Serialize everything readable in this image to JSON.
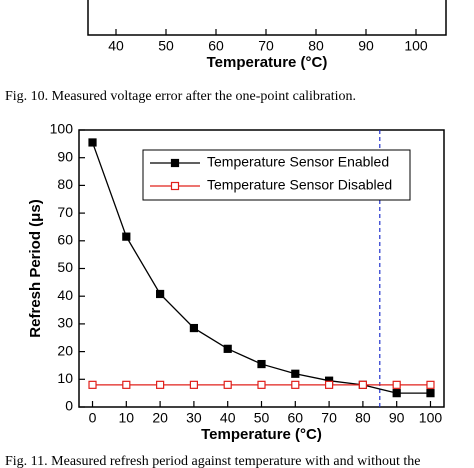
{
  "chart_data": [
    {
      "type": "line",
      "x_label": "Temperature (°C)",
      "xlim": [
        34.4,
        106
      ],
      "xticks": [
        40,
        50,
        60,
        70,
        80,
        90,
        100
      ],
      "caption": "Fig. 10.   Measured voltage error after the one-point calibration."
    },
    {
      "type": "line",
      "x_label": "Temperature (°C)",
      "y_label": "Refresh Period (μs)",
      "xlim": [
        -4,
        104
      ],
      "ylim": [
        0,
        100
      ],
      "xticks": [
        0,
        10,
        20,
        30,
        40,
        50,
        60,
        70,
        80,
        90,
        100
      ],
      "yticks": [
        0,
        10,
        20,
        30,
        40,
        50,
        60,
        70,
        80,
        90,
        100
      ],
      "x": [
        0,
        10,
        20,
        30,
        40,
        50,
        60,
        70,
        80,
        90,
        100
      ],
      "series": [
        {
          "name": "Temperature Sensor Enabled",
          "color": "#000000",
          "marker": "filled-square",
          "values": [
            95.5,
            61.5,
            40.8,
            28.5,
            21,
            15.5,
            12,
            9.5,
            8,
            5,
            5
          ]
        },
        {
          "name": "Temperature Sensor Disabled",
          "color": "#e0201b",
          "marker": "open-square",
          "values": [
            8,
            8,
            8,
            8,
            8,
            8,
            8,
            8,
            8,
            8,
            8
          ]
        }
      ],
      "vline": {
        "x": 85,
        "color": "#2233cc"
      },
      "caption": "Fig. 11.   Measured refresh period against temperature with and without the"
    }
  ]
}
